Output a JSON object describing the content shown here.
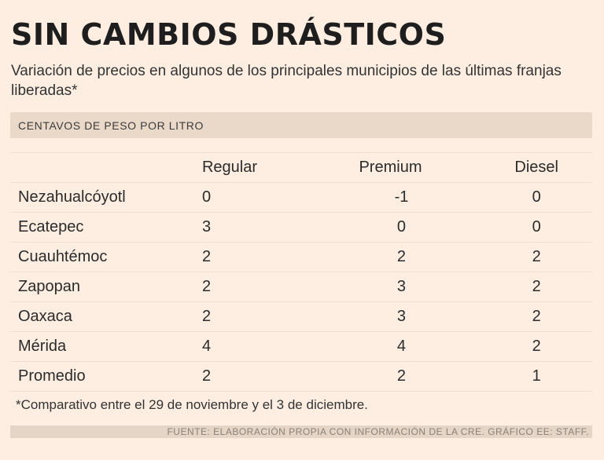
{
  "title": "SIN CAMBIOS DRÁSTICOS",
  "subtitle": "Variación de precios en algunos de los principales municipios de las últimas franjas liberadas*",
  "units": "CENTAVOS DE PESO POR LITRO",
  "footnote": "*Comparativo entre el 29 de noviembre y el 3 de diciembre.",
  "source": "FUENTE: ELABORACIÓN PROPIA CON INFORMACIÓN DE LA CRE. GRÁFICO EE: STAFF.",
  "chart_data": {
    "type": "table",
    "title": "SIN CAMBIOS DRÁSTICOS",
    "columns": [
      "Regular",
      "Premium",
      "Diesel"
    ],
    "rows": [
      {
        "label": "Nezahualcóyotl",
        "values": [
          "0",
          "-1",
          "0"
        ]
      },
      {
        "label": "Ecatepec",
        "values": [
          "3",
          "0",
          "0"
        ]
      },
      {
        "label": "Cuauhtémoc",
        "values": [
          "2",
          "2",
          "2"
        ]
      },
      {
        "label": "Zapopan",
        "values": [
          "2",
          "3",
          "2"
        ]
      },
      {
        "label": "Oaxaca",
        "values": [
          "2",
          "3",
          "2"
        ]
      },
      {
        "label": "Mérida",
        "values": [
          "4",
          "4",
          "2"
        ]
      },
      {
        "label": "Promedio",
        "values": [
          "2",
          "2",
          "1"
        ]
      }
    ]
  }
}
